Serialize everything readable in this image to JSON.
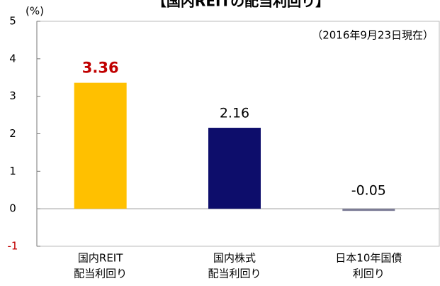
{
  "chart_data": {
    "type": "bar",
    "title": "【国内REITの配当利回り】",
    "unit": "(%)",
    "annotation": "（2016年9月23日現在）",
    "categories": [
      [
        "国内REIT",
        "配当利回り"
      ],
      [
        "国内株式",
        "配当利回り"
      ],
      [
        "日本10年国債",
        "利回り"
      ]
    ],
    "values": [
      3.36,
      2.16,
      -0.05
    ],
    "colors": [
      "#ffc000",
      "#0d0d6b",
      "#7c7c96"
    ],
    "ylim": [
      -1,
      5
    ],
    "yticks": [
      -1,
      0,
      1,
      2,
      3,
      4,
      5
    ]
  }
}
